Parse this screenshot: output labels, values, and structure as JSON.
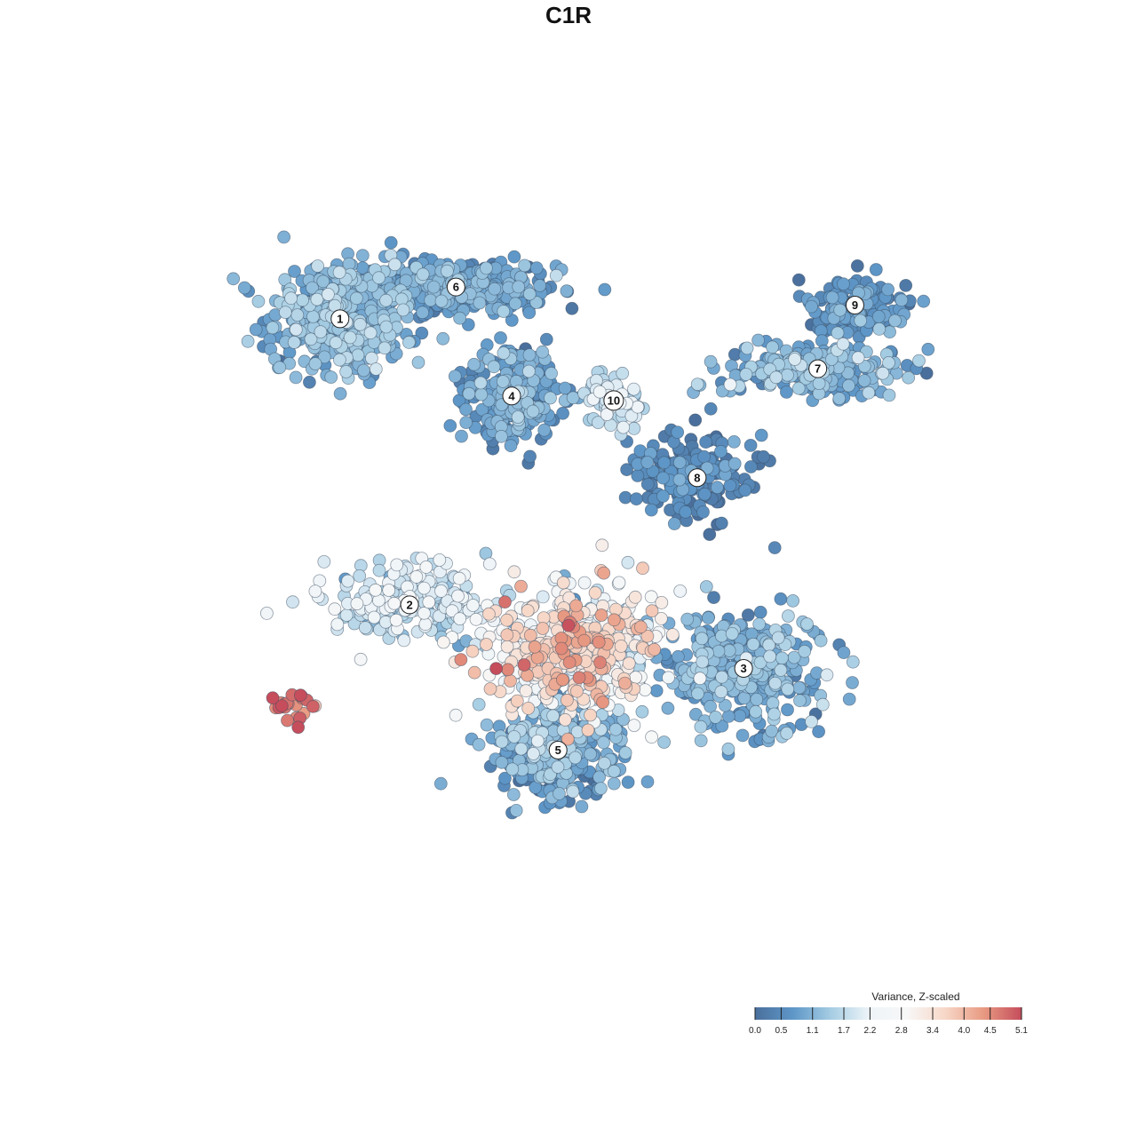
{
  "title": "C1R",
  "chart_data": {
    "type": "scatter",
    "title": "C1R",
    "legend": {
      "title": "Variance, Z-scaled",
      "placement": "bottom-right",
      "ticks": [
        "0.0",
        "0.5",
        "1.1",
        "1.7",
        "2.2",
        "2.8",
        "3.4",
        "4.0",
        "4.5",
        "5.1"
      ],
      "range": [
        0.0,
        5.1
      ],
      "colors": [
        "#4a6f9c",
        "#5e97c8",
        "#a6cde3",
        "#eef4f8",
        "#f7f7f7",
        "#f7d7c7",
        "#e89a82",
        "#c54d5c"
      ]
    },
    "clusters": [
      {
        "label": "1",
        "cx": -55,
        "cy": 55,
        "sx": 8,
        "sy": 6,
        "n": 420,
        "mean": 1.1,
        "spread": 0.35
      },
      {
        "label": "6",
        "cx": -30,
        "cy": 62,
        "sx": 11,
        "sy": 3,
        "n": 420,
        "mean": 0.8,
        "spread": 0.3
      },
      {
        "label": "4",
        "cx": -18,
        "cy": 38,
        "sx": 5,
        "sy": 5,
        "n": 280,
        "mean": 0.8,
        "spread": 0.35
      },
      {
        "label": "10",
        "cx": 4,
        "cy": 37,
        "sx": 3,
        "sy": 2.5,
        "n": 70,
        "mean": 1.8,
        "spread": 0.3
      },
      {
        "label": "9",
        "cx": 56,
        "cy": 58,
        "sx": 6,
        "sy": 3,
        "n": 150,
        "mean": 0.6,
        "spread": 0.3
      },
      {
        "label": "7",
        "cx": 48,
        "cy": 44,
        "sx": 10,
        "sy": 3,
        "n": 240,
        "mean": 1.0,
        "spread": 0.35
      },
      {
        "label": "8",
        "cx": 22,
        "cy": 20,
        "sx": 7,
        "sy": 5,
        "n": 190,
        "mean": 0.4,
        "spread": 0.3
      },
      {
        "label": "2",
        "cx": -40,
        "cy": -8,
        "sx": 9,
        "sy": 4,
        "n": 210,
        "mean": 1.9,
        "spread": 0.45
      },
      {
        "label": "3",
        "cx": 32,
        "cy": -22,
        "sx": 9,
        "sy": 6,
        "n": 360,
        "mean": 1.0,
        "spread": 0.35
      },
      {
        "label": "5",
        "cx": -8,
        "cy": -40,
        "sx": 7,
        "sy": 5,
        "n": 320,
        "mean": 0.9,
        "spread": 0.4
      },
      {
        "label": "",
        "cx": -5,
        "cy": -18,
        "sx": 9,
        "sy": 7,
        "n": 520,
        "mean": 3.0,
        "spread": 0.8
      },
      {
        "label": "",
        "cx": -65,
        "cy": -30,
        "sx": 2.5,
        "sy": 2,
        "n": 26,
        "mean": 4.6,
        "spread": 0.4
      }
    ],
    "xlim": [
      -90,
      90
    ],
    "ylim": [
      -90,
      90
    ],
    "grid": false
  }
}
